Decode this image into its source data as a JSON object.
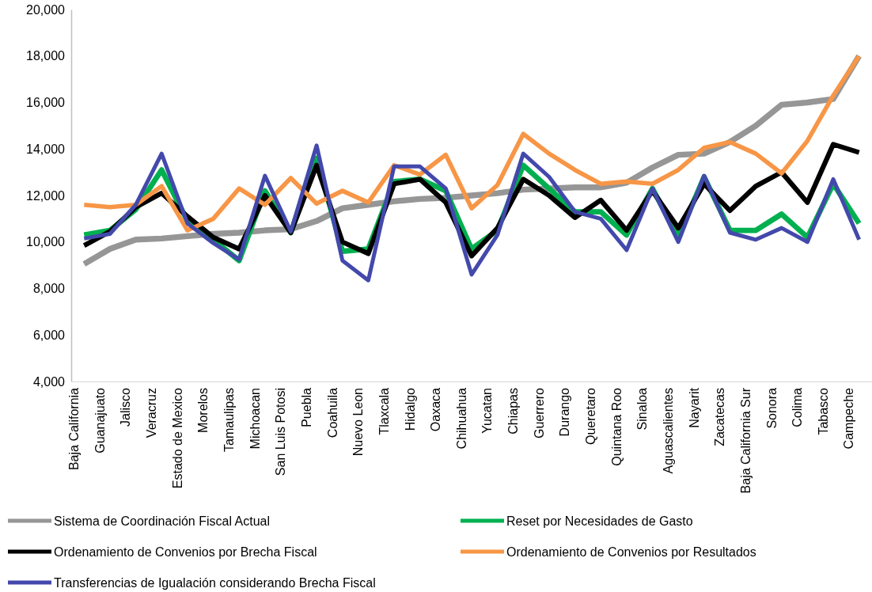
{
  "chart_data": {
    "type": "line",
    "categories": [
      "Baja California",
      "Guanajuato",
      "Jalisco",
      "Veracruz",
      "Estado de Mexico",
      "Morelos",
      "Tamaulipas",
      "Michoacan",
      "San Luis Potosi",
      "Puebla",
      "Coahuila",
      "Nuevo Leon",
      "Tlaxcala",
      "Hidalgo",
      "Oaxaca",
      "Chihuahua",
      "Yucatan",
      "Chiapas",
      "Guerrero",
      "Durango",
      "Queretaro",
      "Quintana Roo",
      "Sinaloa",
      "Aguascalientes",
      "Nayarit",
      "Zacatecas",
      "Baja California Sur",
      "Sonora",
      "Colima",
      "Tabasco",
      "Campeche"
    ],
    "ylim": [
      4000,
      20000
    ],
    "yticks": [
      {
        "value": 4000,
        "label": "4,000"
      },
      {
        "value": 6000,
        "label": "6,000"
      },
      {
        "value": 8000,
        "label": "8,000"
      },
      {
        "value": 10000,
        "label": "10,000"
      },
      {
        "value": 12000,
        "label": "12,000"
      },
      {
        "value": 14000,
        "label": "14,000"
      },
      {
        "value": 16000,
        "label": "16,000"
      },
      {
        "value": 18000,
        "label": "18,000"
      },
      {
        "value": 20000,
        "label": "20,000"
      }
    ],
    "grid": false,
    "legend": "bottom",
    "marker": "none",
    "line_style": "solid",
    "series": [
      {
        "name": "Sistema de Coordinación Fiscal Actual",
        "color": "#969696",
        "values": [
          9050,
          9700,
          10100,
          10150,
          10250,
          10350,
          10400,
          10500,
          10550,
          10900,
          11450,
          11600,
          11750,
          11850,
          11900,
          12000,
          12100,
          12250,
          12300,
          12350,
          12350,
          12550,
          13200,
          13750,
          13800,
          14300,
          15000,
          15900,
          16000,
          16150,
          18000
        ]
      },
      {
        "name": "Reset por Necesidades de Gasto",
        "color": "#00b050",
        "values": [
          10300,
          10500,
          11400,
          13100,
          10900,
          10100,
          9200,
          12200,
          10400,
          13600,
          9600,
          9700,
          12600,
          12700,
          12200,
          9700,
          10500,
          13300,
          12300,
          11300,
          11300,
          10300,
          12300,
          10200,
          12800,
          10500,
          10500,
          11200,
          10200,
          12500,
          10800
        ]
      },
      {
        "name": "Ordenamiento de Convenios por Brecha Fiscal",
        "color": "#000000",
        "values": [
          9850,
          10450,
          11500,
          12100,
          11100,
          10200,
          9700,
          12000,
          10400,
          13300,
          10000,
          9500,
          12500,
          12700,
          11700,
          9400,
          10600,
          12700,
          12000,
          11050,
          11800,
          10500,
          12200,
          10600,
          12500,
          11350,
          12400,
          13000,
          11700,
          14200,
          13850
        ]
      },
      {
        "name": "Ordenamiento de Convenios por Resultados",
        "color": "#f79646",
        "values": [
          11600,
          11500,
          11600,
          12400,
          10500,
          11000,
          12300,
          11600,
          12750,
          11650,
          12200,
          11700,
          13300,
          12900,
          13750,
          11450,
          12450,
          14650,
          13800,
          13100,
          12500,
          12600,
          12500,
          13100,
          14050,
          14300,
          13800,
          12950,
          14350,
          16300,
          18000
        ]
      },
      {
        "name": "Transferencias de Igualación considerando Brecha Fiscal",
        "color": "#4349ab",
        "values": [
          10150,
          10350,
          11600,
          13800,
          10800,
          9950,
          9250,
          12850,
          10450,
          14150,
          9200,
          8350,
          13250,
          13250,
          12300,
          8600,
          10300,
          13800,
          12800,
          11300,
          11000,
          9650,
          12300,
          10000,
          12850,
          10400,
          10100,
          10600,
          10000,
          12700,
          10100
        ]
      }
    ]
  }
}
